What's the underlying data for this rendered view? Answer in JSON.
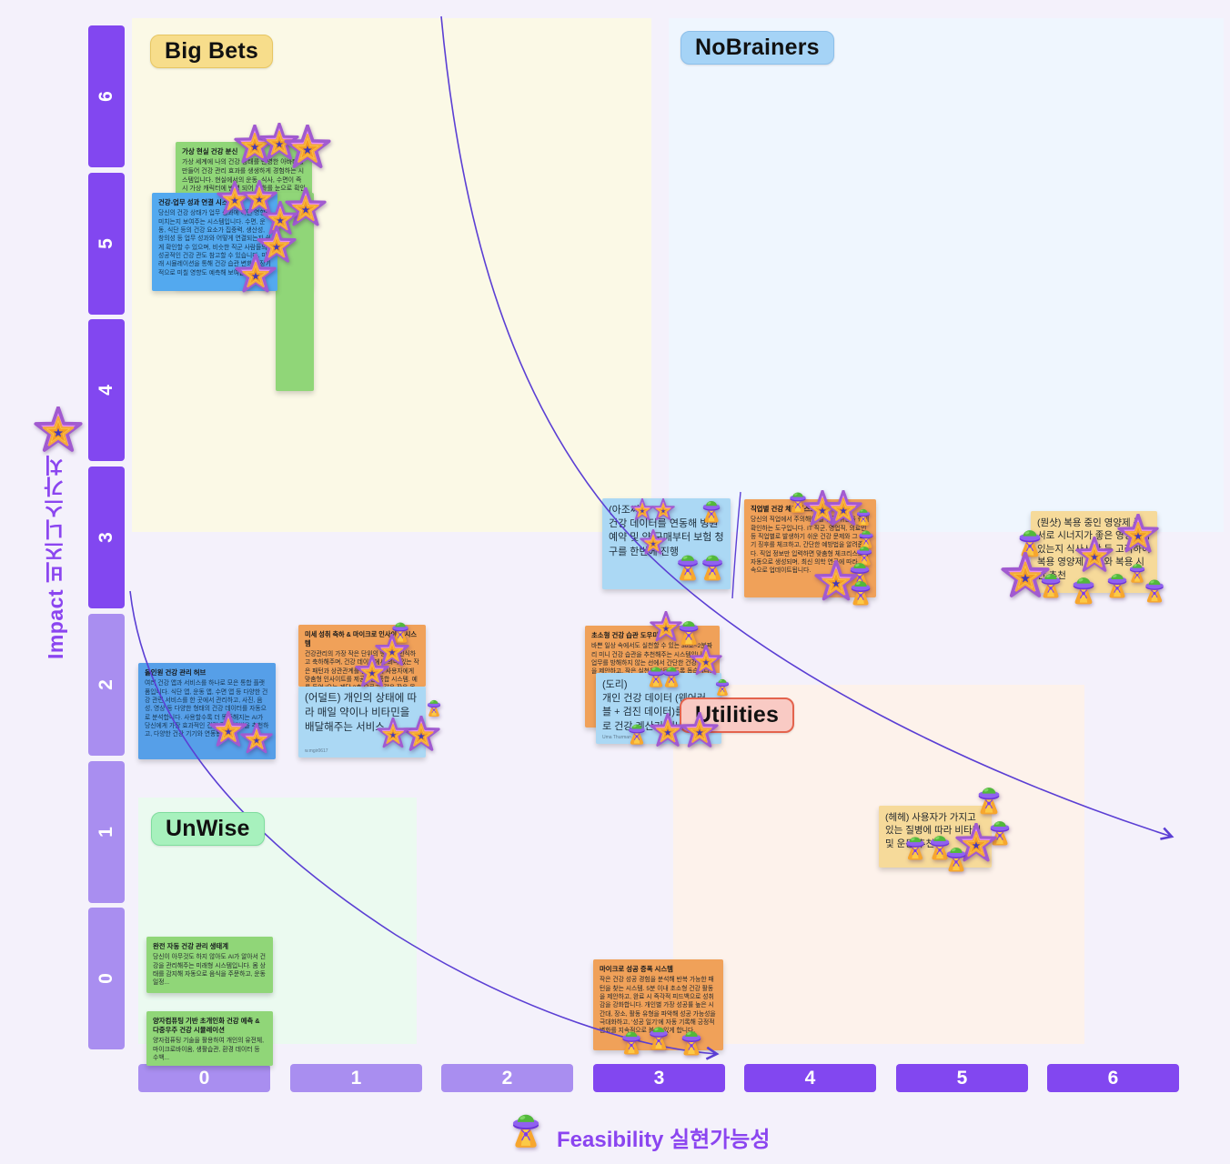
{
  "axes": {
    "y_label": "Impact 비즈니스가치",
    "x_label": "Feasibility 실현가능성",
    "y_ticks": [
      "6",
      "5",
      "4",
      "3",
      "2",
      "1",
      "0"
    ],
    "x_ticks": [
      "0",
      "1",
      "2",
      "3",
      "4",
      "5",
      "6"
    ],
    "tick_dark_color": "#8247f0",
    "tick_light_color": "#a98ef0",
    "label_color": "#8b45f0"
  },
  "quadrants": {
    "big_bets": "Big Bets",
    "no_brainers": "NoBrainers",
    "unwise": "UnWise",
    "utilities": "Utilities"
  },
  "icons": {
    "star": "star-sticker-icon",
    "ufo": "ufo-sticker-icon"
  },
  "curve_color": "#5b3fd4",
  "notes": [
    {
      "id": "n-vr-avatar",
      "color": "green",
      "title": "가상 현실 건강 분신",
      "body": "가상 세계에 나의 건강 상태를 반영한 아바타를 만들어 건강 관리 효과를 생생하게 경험하는 시스템입니다. 현실에서의 운동, 식사, 수면이 즉시 가상 캐릭터에 반영 되어 변화를 눈으로 확인",
      "author": ""
    },
    {
      "id": "n-green-fragment",
      "color": "green",
      "title": "",
      "body": "",
      "author": ""
    },
    {
      "id": "n-work-link",
      "color": "vblue",
      "title": "건강-업무 성과 연결 시스템",
      "body": "당신의 건강 상태가 업무 성과에 어떤 영향을 미치는지 보여주는 시스템입니다. 수면, 운동, 식단 등의 건강 요소가 집중력, 생산성, 창의성 등 업무 성과와 어떻게 연결되는지 쉽게 확인할 수 있으며, 비슷한 직군 사람들의 성공적인 건강 관도 참고할 수 있습니다. 미래 시뮬레이션을 통해 건강 습관 변화가 장기적으로 미칠 영향도 예측해 보여줍니다.",
      "author": ""
    },
    {
      "id": "n-ajossi",
      "color": "lblue",
      "title": "",
      "body": "(아조씨)\n건강 데이터를 연동해 병원 예약 및 약 구매부터 보험 청구를 한번에 진행",
      "author": ""
    },
    {
      "id": "n-job-checklist",
      "color": "orange",
      "title": "직업별 건강 체크리스트",
      "body": "당신의 직업에서 주의해야 할 건강 위험을 쉽게 확인하는 도구입니다. IT 직군, 영업직, 의료인 등 직업별로 발생하기 쉬운 건강 문제와 그 초기 징후를 체크하고, 간단한 예방법을 알려줍니다. 직업 정보만 입력하면 맞춤형 체크리스트가 자동으로 생성되며, 최신 의학 연구에 따라 지속으로 업데이트됩니다.",
      "author": ""
    },
    {
      "id": "n-one-shot",
      "color": "yellow",
      "title": "",
      "body": "(뭔샷) 복용 중인 영양제 중 서로 시너지가 좋은 영양제가 있는지 식사시간 등 고려하여 복용 영양제 종류와 복용 시간 추천",
      "author": ""
    },
    {
      "id": "n-micro-insight",
      "color": "orange",
      "title": "미세 성취 축하 & 마이크로 인사이트 시스템",
      "body": "건강관리의 가장 작은 단위의 행동도 인식하고 축하해주며, 건강 데이터에서 의미 있는 작은 패턴과 상관관계를 발견하여 사용자에게 맞춤형 인사이트를 제공하는 통합 시스템. 예를 들어 '오늘 계단 3층 오르기' 같은 작은 목표를 달성하...",
      "author": ""
    },
    {
      "id": "n-adult",
      "color": "lblue",
      "title": "",
      "body": "(어덜트) 개인의 상태에 따라 매일 약이나 비타민을 배달해주는 서비스",
      "author": "w.mgir0617"
    },
    {
      "id": "n-tiny-habit",
      "color": "orange",
      "title": "초소형 건강 습관 도우미",
      "body": "바쁜 일상 속에서도 실천할 수 있는 30초~2분짜리 미니 건강 습관을 추천해주는 시스템입니다. 업무를 방해하지 않는 선에서 간단한 건강 행동을 제안하고, 작은 실천을 터득하도록 돕습니다.",
      "author": ""
    },
    {
      "id": "n-dori",
      "color": "lblue",
      "title": "",
      "body": "(도리)\n개인 건강 데이터 (웨어러블 + 검진 데이터)를 기반으로 건강 계산기 서비스 제공",
      "author": "Uma Thurman"
    },
    {
      "id": "n-allinone-hub",
      "color": "vblue2",
      "title": "올인원 건강 관리 허브",
      "body": "여러 건강 앱과 서비스를 하나로 모은 통합 플랫폼입니다. 식단 앱, 운동 앱, 수면 앱 등 다양한 건강 관련 서비스를 한 곳에서 관리하고, 사진, 음성, 영상 등 다양한 형태의 건강 데이터를 자동으로 분석합니다. 사용할수록 더 똑똑해지는 AI가 당신에게 가장 효과적인 건강 관리 방법을 추천하고, 다양한 건강 기기와 연동됩니다.",
      "author": ""
    },
    {
      "id": "n-hehe",
      "color": "yellow",
      "title": "",
      "body": "(헤헤) 사용자가 가지고 있는 질병에 따라 비타민 및 운동 추천",
      "author": ""
    },
    {
      "id": "n-auto-eco",
      "color": "green",
      "title": "완전 자동 건강 관리 생태계",
      "body": "당신이 아무것도 하지 않아도 AI가 알아서 건강을 관리해주는 미래형 시스템입니다. 몸 상태를 감지해 자동으로 음식을 주문하고, 운동 일정...",
      "author": ""
    },
    {
      "id": "n-quantum",
      "color": "green",
      "title": "양자컴퓨팅 기반 초개인화 건강 예측 & 다중우주 건강 시뮬레이션",
      "body": "양자컴퓨팅 기술을 활용하여 개인의 유전체, 마이크로바이옴, 생활습관, 환경 데이터 등 수백...",
      "author": ""
    },
    {
      "id": "n-micro-success",
      "color": "orange",
      "title": "마이크로 성공 증폭 시스템",
      "body": "작은 건강 성공 경험을 분석해 반복 가능한 패턴을 찾는 시스템. 5분 이내 초소형 건강 활동을 제안하고, 완료 시 즉각적 피드백으로 성취감을 강화합니다. 개인별 가장 성공률 높은 시간대, 장소, 활동 유형을 파악해 성공 가능성을 극대화하고, '성공 일기'에 자동 기록해 긍정적 변화를 지속적으로 볼 수 있게 합니다.",
      "author": ""
    }
  ]
}
